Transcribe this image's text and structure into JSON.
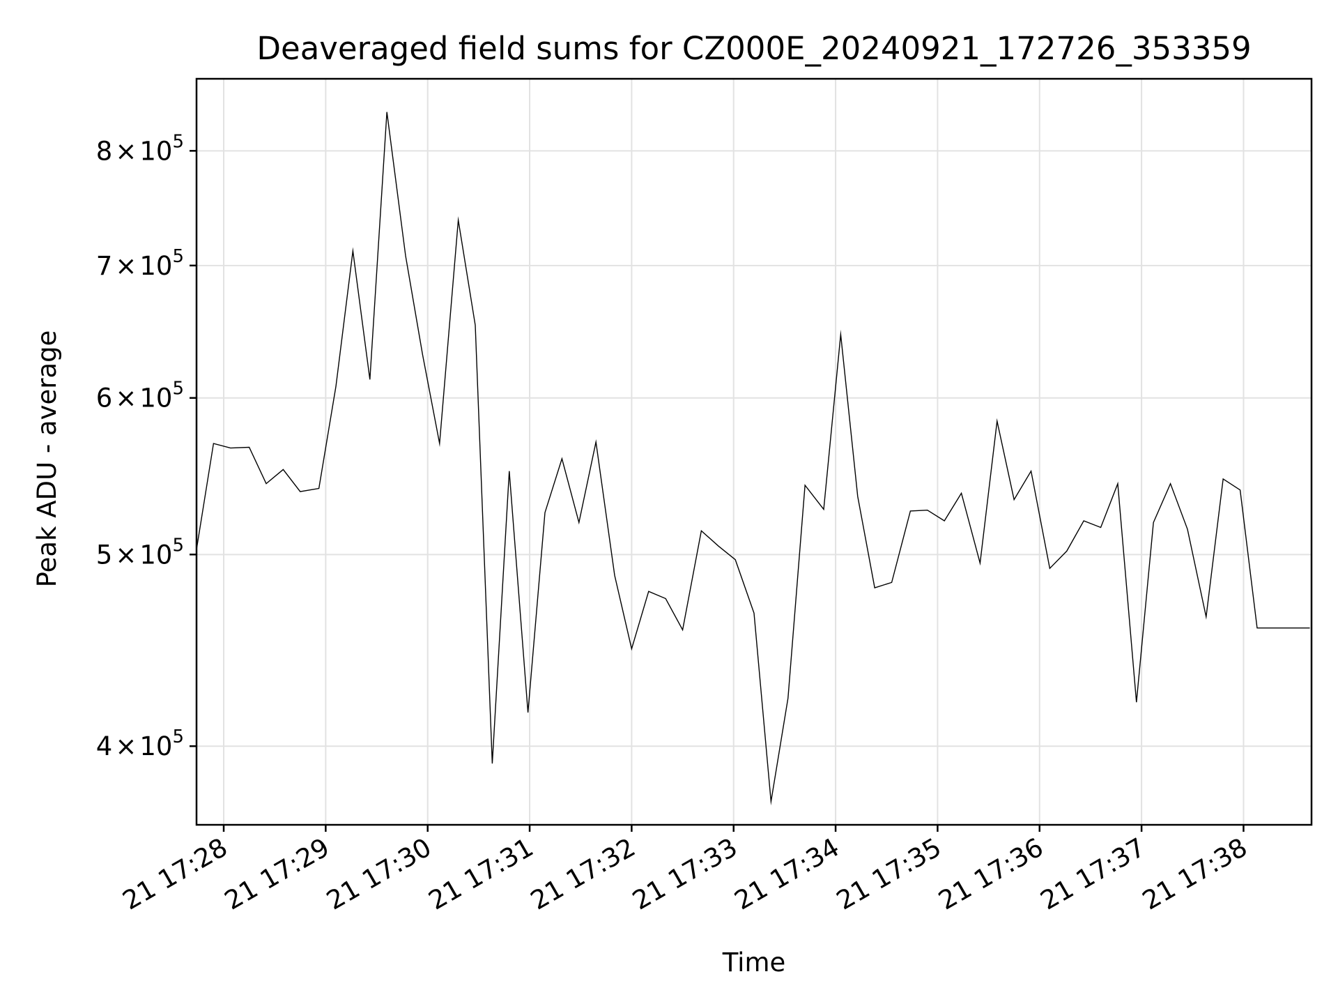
{
  "chart_data": {
    "type": "line",
    "title": "Deaveraged field sums for CZ000E_20240921_172726_353359",
    "xlabel": "Time",
    "ylabel": "Peak ADU - average",
    "y_scale": "log",
    "grid": true,
    "xlim": [
      "2024-09-21 17:27:44",
      "2024-09-21 17:38:40"
    ],
    "ylim": [
      365000,
      870000
    ],
    "x_ticks": [
      "21 17:28",
      "21 17:29",
      "21 17:30",
      "21 17:31",
      "21 17:32",
      "21 17:33",
      "21 17:34",
      "21 17:35",
      "21 17:36",
      "21 17:37",
      "21 17:38"
    ],
    "x_tick_times": [
      "2024-09-21 17:28:00",
      "2024-09-21 17:29:00",
      "2024-09-21 17:30:00",
      "2024-09-21 17:31:00",
      "2024-09-21 17:32:00",
      "2024-09-21 17:33:00",
      "2024-09-21 17:34:00",
      "2024-09-21 17:35:00",
      "2024-09-21 17:36:00",
      "2024-09-21 17:37:00",
      "2024-09-21 17:38:00"
    ],
    "y_ticks": [
      {
        "value": 400000,
        "base": "4",
        "times": "×",
        "power": "10",
        "exp": "5"
      },
      {
        "value": 500000,
        "base": "5",
        "times": "×",
        "power": "10",
        "exp": "5"
      },
      {
        "value": 600000,
        "base": "6",
        "times": "×",
        "power": "10",
        "exp": "5"
      },
      {
        "value": 700000,
        "base": "7",
        "times": "×",
        "power": "10",
        "exp": "5"
      },
      {
        "value": 800000,
        "base": "8",
        "times": "×",
        "power": "10",
        "exp": "5"
      }
    ],
    "series": [
      {
        "color": "#000000",
        "x": [
          "2024-09-21 17:27:44",
          "2024-09-21 17:27:54",
          "2024-09-21 17:28:04",
          "2024-09-21 17:28:15",
          "2024-09-21 17:28:25",
          "2024-09-21 17:28:35",
          "2024-09-21 17:28:45",
          "2024-09-21 17:28:56",
          "2024-09-21 17:29:06",
          "2024-09-21 17:29:16",
          "2024-09-21 17:29:26",
          "2024-09-21 17:29:36",
          "2024-09-21 17:29:47",
          "2024-09-21 17:29:57",
          "2024-09-21 17:30:07",
          "2024-09-21 17:30:18",
          "2024-09-21 17:30:28",
          "2024-09-21 17:30:38",
          "2024-09-21 17:30:48",
          "2024-09-21 17:30:59",
          "2024-09-21 17:31:09",
          "2024-09-21 17:31:19",
          "2024-09-21 17:31:29",
          "2024-09-21 17:31:39",
          "2024-09-21 17:31:50",
          "2024-09-21 17:32:00",
          "2024-09-21 17:32:10",
          "2024-09-21 17:32:20",
          "2024-09-21 17:32:30",
          "2024-09-21 17:32:41",
          "2024-09-21 17:32:51",
          "2024-09-21 17:33:01",
          "2024-09-21 17:33:12",
          "2024-09-21 17:33:22",
          "2024-09-21 17:33:32",
          "2024-09-21 17:33:42",
          "2024-09-21 17:33:53",
          "2024-09-21 17:34:03",
          "2024-09-21 17:34:13",
          "2024-09-21 17:34:23",
          "2024-09-21 17:34:33",
          "2024-09-21 17:34:44",
          "2024-09-21 17:34:54",
          "2024-09-21 17:35:04",
          "2024-09-21 17:35:14",
          "2024-09-21 17:35:25",
          "2024-09-21 17:35:35",
          "2024-09-21 17:35:45",
          "2024-09-21 17:35:55",
          "2024-09-21 17:36:06",
          "2024-09-21 17:36:16",
          "2024-09-21 17:36:26",
          "2024-09-21 17:36:36",
          "2024-09-21 17:36:46",
          "2024-09-21 17:36:57",
          "2024-09-21 17:37:07",
          "2024-09-21 17:37:17",
          "2024-09-21 17:37:27",
          "2024-09-21 17:37:38",
          "2024-09-21 17:37:48",
          "2024-09-21 17:37:58",
          "2024-09-21 17:38:08",
          "2024-09-21 17:38:18",
          "2024-09-21 17:38:29",
          "2024-09-21 17:38:39"
        ],
        "values": [
          503000,
          569000,
          566000,
          566500,
          543000,
          552000,
          538000,
          540000,
          608000,
          712000,
          613000,
          837000,
          708000,
          631000,
          569000,
          738000,
          653000,
          392000,
          551000,
          416000,
          525000,
          559000,
          519000,
          570000,
          488000,
          448000,
          479000,
          475000,
          458000,
          514000,
          505000,
          497000,
          467000,
          375000,
          423000,
          542000,
          527000,
          646000,
          535000,
          481000,
          484000,
          526000,
          526500,
          520000,
          537000,
          495000,
          584000,
          533000,
          551000,
          492000,
          502000,
          520000,
          516000,
          543000,
          421000,
          519000,
          543000,
          515000,
          465000,
          546000,
          539000,
          459000,
          459000,
          459000,
          459000
        ]
      }
    ]
  }
}
